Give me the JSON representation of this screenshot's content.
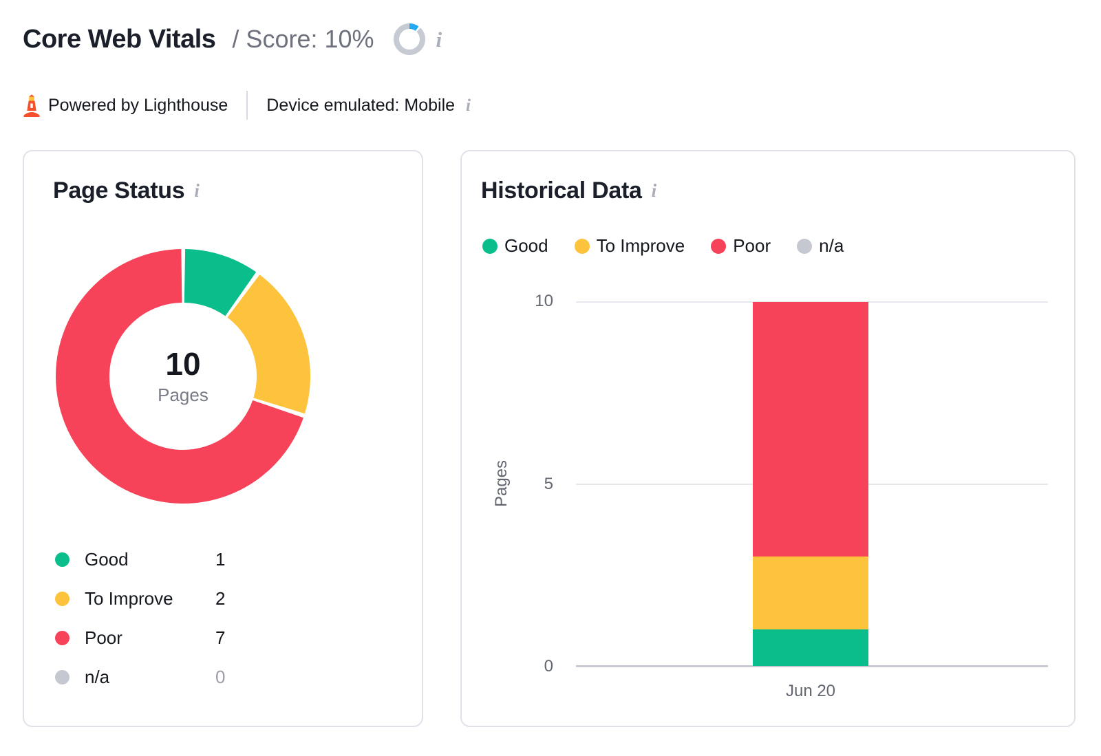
{
  "header": {
    "title": "Core Web Vitals",
    "score_label": "/ Score: 10%",
    "score_percent": 10,
    "powered_by": "Powered by Lighthouse",
    "device_emulated": "Device emulated: Mobile"
  },
  "colors": {
    "good": "#0abe8c",
    "to_improve": "#fdc33c",
    "poor": "#f6435a",
    "na": "#c5c8d0",
    "score_blue": "#24aaf2",
    "ring_gray": "#c6cad3",
    "grid": "#e5e7ed",
    "axis": "#c7cad2"
  },
  "page_status": {
    "title": "Page Status",
    "center_value": "10",
    "center_label": "Pages"
  },
  "historical": {
    "title": "Historical Data"
  },
  "chart_data": [
    {
      "type": "donut",
      "title": "Page Status",
      "labels": [
        "Good",
        "To Improve",
        "Poor",
        "n/a"
      ],
      "values": [
        1,
        2,
        7,
        0
      ],
      "color_keys": [
        "good",
        "to_improve",
        "poor",
        "na"
      ],
      "center": {
        "value": "10",
        "label": "Pages"
      },
      "start_angle_deg": -90,
      "direction": "clockwise"
    },
    {
      "type": "stacked_bar",
      "title": "Historical Data",
      "categories": [
        "Jun 20"
      ],
      "series": [
        {
          "name": "Good",
          "color_key": "good",
          "values": [
            1
          ]
        },
        {
          "name": "To Improve",
          "color_key": "to_improve",
          "values": [
            2
          ]
        },
        {
          "name": "Poor",
          "color_key": "poor",
          "values": [
            7
          ]
        },
        {
          "name": "n/a",
          "color_key": "na",
          "values": [
            0
          ]
        }
      ],
      "xlabel": "",
      "ylabel": "Pages",
      "ylim": [
        0,
        10
      ],
      "yticks": [
        0,
        5,
        10
      ],
      "grid": true,
      "legend_position": "top"
    }
  ]
}
